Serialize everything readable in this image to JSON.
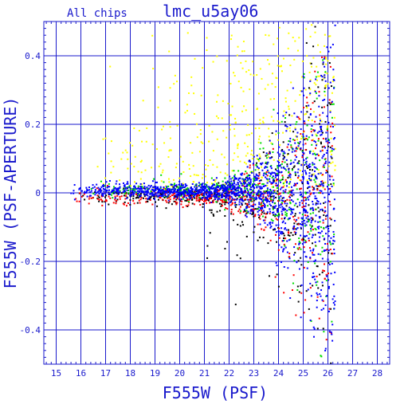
{
  "chart_data": {
    "type": "scatter",
    "title": "lmc_u5ay06",
    "subtitle": "All chips",
    "xlabel": "F555W (PSF)",
    "ylabel": "F555W (PSF-APERTURE)",
    "xlim": [
      14.5,
      28.5
    ],
    "ylim": [
      -0.5,
      0.5
    ],
    "x_ticks": [
      15,
      16,
      17,
      18,
      19,
      20,
      21,
      22,
      23,
      24,
      25,
      26,
      27,
      28
    ],
    "y_ticks": [
      0.4,
      0.2,
      0,
      -0.2,
      -0.4
    ],
    "y_tick_labels": [
      "0.4",
      "0.2",
      "0",
      "-0.2",
      "-0.4"
    ],
    "grid": true,
    "series": [
      {
        "color": "#ffff00",
        "x_range": [
          16.5,
          26.3
        ],
        "y_spread": "positive, 0 to 0.5",
        "count": 450
      },
      {
        "color": "#000000",
        "x_range": [
          15.3,
          26.2
        ],
        "y_spread": "-0.45 to 0.45",
        "count": 480
      },
      {
        "color": "#ff0000",
        "x_range": [
          15.5,
          26.2
        ],
        "y_spread": "-0.45 to 0.45",
        "count": 480
      },
      {
        "color": "#00dd00",
        "x_range": [
          16.0,
          26.3
        ],
        "y_spread": "-0.4 to 0.5",
        "count": 420
      },
      {
        "color": "#0000ff",
        "x_range": [
          15.5,
          26.3
        ],
        "y_spread": "-0.4 to 0.45",
        "count": 1400
      }
    ]
  },
  "colors": {
    "axis": "#1a1acc",
    "grid": "#1a1acc",
    "yellow": "#ffff00",
    "black": "#000000",
    "red": "#ff0000",
    "green": "#00dd00",
    "blue": "#0000ff"
  }
}
